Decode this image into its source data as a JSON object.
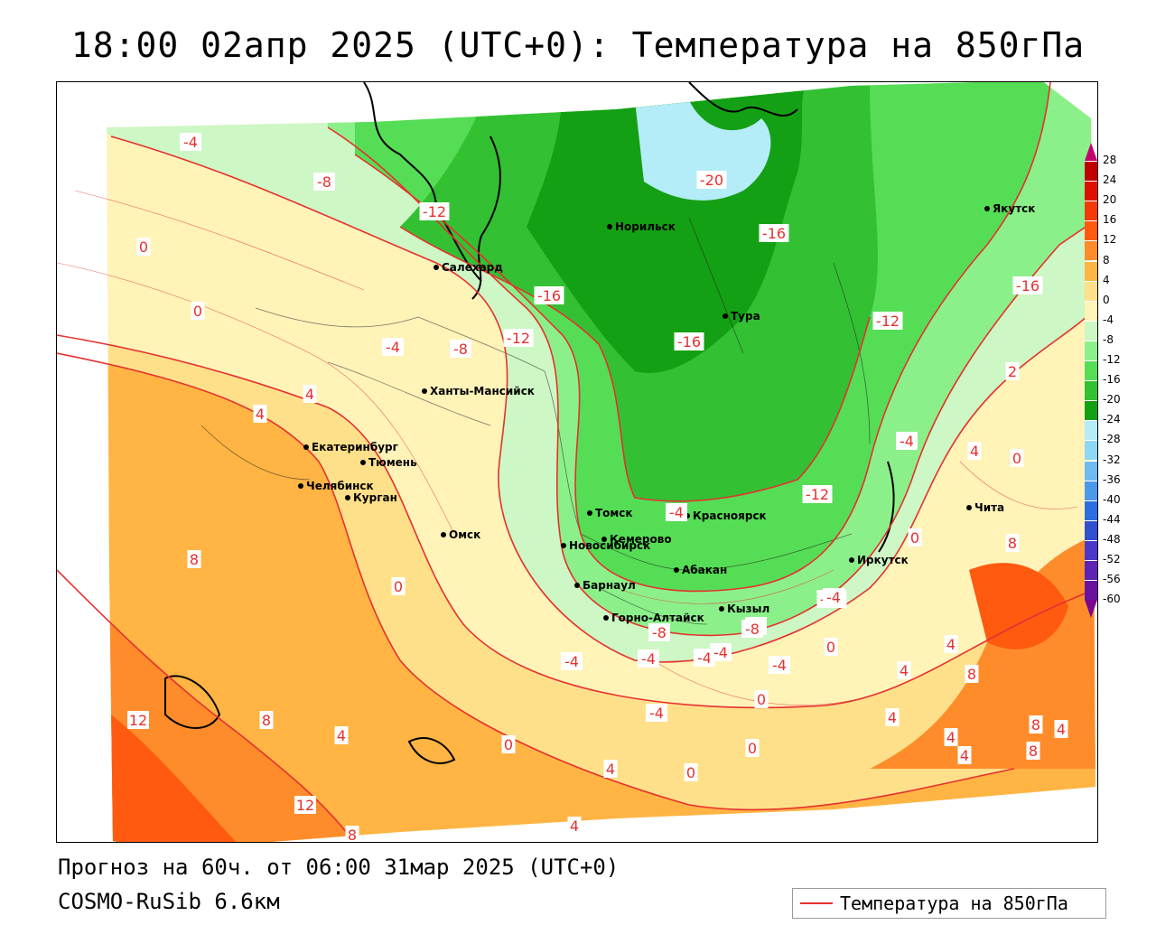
{
  "header": {
    "title": "18:00 02апр 2025 (UTC+0): Температура на 850гПа"
  },
  "footer": {
    "forecast_info": "Прогноз на 60ч. от 06:00 31мар 2025 (UTC+0)",
    "model_name": "COSMO-RuSib 6.6км"
  },
  "legend": {
    "line_label": "Температура на 850гПа",
    "line_color": "#e5312f"
  },
  "colorbar": {
    "ticks": [
      "28",
      "24",
      "20",
      "16",
      "12",
      "8",
      "4",
      "0",
      "-4",
      "-8",
      "-12",
      "-16",
      "-20",
      "-24",
      "-28",
      "-32",
      "-36",
      "-40",
      "-44",
      "-48",
      "-52",
      "-56",
      "-60"
    ],
    "colors": [
      "#c2006e",
      "#c00000",
      "#e01000",
      "#f53a0a",
      "#ff5a10",
      "#ff8c2a",
      "#ffb444",
      "#ffe08a",
      "#fff3b8",
      "#cdf7c4",
      "#8cf08a",
      "#55dd55",
      "#33c033",
      "#14a014",
      "#b4ecf8",
      "#8fd8f4",
      "#6fbaf0",
      "#4c98ea",
      "#2c6ee0",
      "#3050d0",
      "#4c38c8",
      "#5e22b4",
      "#6a12a0",
      "#7a0890"
    ]
  },
  "map": {
    "cities": [
      {
        "name": "Якутск"
      },
      {
        "name": "Норильск"
      },
      {
        "name": "Салехард"
      },
      {
        "name": "Тура"
      },
      {
        "name": "Ханты-Мансийск"
      },
      {
        "name": "Екатеринбург"
      },
      {
        "name": "Тюмень"
      },
      {
        "name": "Челябинск"
      },
      {
        "name": "Курган"
      },
      {
        "name": "Омск"
      },
      {
        "name": "Томск"
      },
      {
        "name": "Красноярск"
      },
      {
        "name": "Новосибирск"
      },
      {
        "name": "Кемерово"
      },
      {
        "name": "Абакан"
      },
      {
        "name": "Барнаул"
      },
      {
        "name": "Иркутск"
      },
      {
        "name": "Горно-Алтайск"
      },
      {
        "name": "Кызыл"
      },
      {
        "name": "Чита"
      }
    ],
    "contour_labels": [
      "-4",
      "-8",
      "-12",
      "0",
      "0",
      "-4",
      "-8",
      "-12",
      "-16",
      "-16",
      "-20",
      "-16",
      "-12",
      "-16",
      "-4",
      "0",
      "4",
      "4",
      "2",
      "-12",
      "-4",
      "8",
      "0",
      "-4",
      "-8",
      "-8",
      "-4",
      "-4",
      "-4",
      "-12",
      "0",
      "0",
      "-4",
      "-4",
      "0",
      "4",
      "4",
      "8",
      "8",
      "8",
      "4",
      "4",
      "0",
      "12",
      "8",
      "4",
      "4",
      "0",
      "4",
      "12",
      "8",
      "4",
      "0",
      "4",
      "8",
      "-4",
      "-8",
      "4"
    ]
  }
}
